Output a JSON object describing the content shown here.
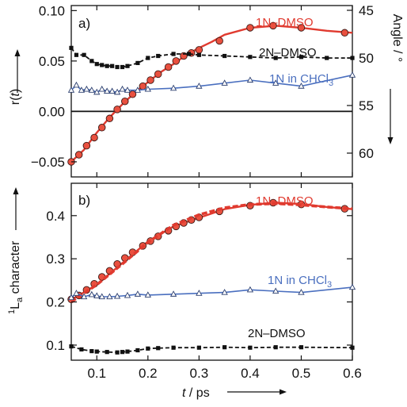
{
  "chart_data": [
    {
      "panel": "a)",
      "type": "line",
      "xlim": [
        0.05,
        0.6
      ],
      "ylim": [
        -0.065,
        0.105
      ],
      "y2lim": [
        62.5,
        44.5
      ],
      "x_ticks": [
        0.1,
        0.2,
        0.3,
        0.4,
        0.5,
        0.6
      ],
      "y_ticks": [
        -0.05,
        0.0,
        0.05,
        0.1
      ],
      "y_tick_labels": [
        "-0.05",
        "0.00",
        "0.05",
        "0.10"
      ],
      "y2_ticks": [
        45,
        50,
        55,
        60
      ],
      "y2_tick_labels": [
        "45",
        "50",
        "55",
        "60"
      ],
      "ylabel": "r(t)",
      "y2label": "Angle / °",
      "zero_line": true,
      "series": [
        {
          "name": "1N–DMSO",
          "color": "#e03a2f",
          "style": "solid",
          "marker": "circle",
          "x": [
            0.05,
            0.075,
            0.1,
            0.125,
            0.15,
            0.175,
            0.2,
            0.225,
            0.25,
            0.275,
            0.3,
            0.325,
            0.35,
            0.4,
            0.45,
            0.5,
            0.55,
            0.6
          ],
          "y": [
            -0.05,
            -0.038,
            -0.021,
            -0.006,
            0.007,
            0.019,
            0.029,
            0.039,
            0.047,
            0.056,
            0.063,
            0.069,
            0.076,
            0.083,
            0.085,
            0.083,
            0.08,
            0.078
          ],
          "marker_x": [
            0.05,
            0.065,
            0.08,
            0.095,
            0.11,
            0.125,
            0.14,
            0.155,
            0.17,
            0.19,
            0.205,
            0.22,
            0.24,
            0.255,
            0.27,
            0.285,
            0.3,
            0.34,
            0.4,
            0.445,
            0.5,
            0.585
          ],
          "marker_y": [
            -0.05,
            -0.043,
            -0.034,
            -0.026,
            -0.016,
            -0.007,
            0.002,
            0.01,
            0.017,
            0.025,
            0.031,
            0.037,
            0.044,
            0.05,
            0.055,
            0.058,
            0.061,
            0.07,
            0.083,
            0.085,
            0.083,
            0.078
          ]
        },
        {
          "name": "2N–DMSO",
          "color": "#111111",
          "style": "dashed",
          "marker": "square",
          "x": [
            0.05,
            0.06,
            0.075,
            0.09,
            0.1,
            0.11,
            0.12,
            0.13,
            0.14,
            0.15,
            0.16,
            0.18,
            0.2,
            0.22,
            0.25,
            0.28,
            0.3,
            0.35,
            0.4,
            0.45,
            0.5,
            0.55,
            0.6
          ],
          "y": [
            0.063,
            0.056,
            0.056,
            0.05,
            0.047,
            0.046,
            0.045,
            0.045,
            0.044,
            0.044,
            0.045,
            0.048,
            0.053,
            0.055,
            0.057,
            0.057,
            0.056,
            0.055,
            0.054,
            0.053,
            0.054,
            0.053,
            0.053
          ]
        },
        {
          "name": "1N in CHCl3",
          "color": "#4a6fbf",
          "style": "solid",
          "marker": "triangle",
          "x": [
            0.05,
            0.06,
            0.07,
            0.08,
            0.09,
            0.1,
            0.11,
            0.12,
            0.13,
            0.14,
            0.15,
            0.16,
            0.18,
            0.2,
            0.25,
            0.3,
            0.35,
            0.4,
            0.45,
            0.5,
            0.6
          ],
          "y": [
            0.021,
            0.026,
            0.021,
            0.022,
            0.021,
            0.019,
            0.022,
            0.02,
            0.02,
            0.019,
            0.022,
            0.021,
            0.021,
            0.022,
            0.023,
            0.025,
            0.028,
            0.031,
            0.028,
            0.025,
            0.036
          ]
        }
      ]
    },
    {
      "panel": "b)",
      "type": "line",
      "xlim": [
        0.05,
        0.6
      ],
      "ylim": [
        0.065,
        0.475
      ],
      "x_ticks": [
        0.1,
        0.2,
        0.3,
        0.4,
        0.5,
        0.6
      ],
      "x_tick_labels": [
        "0.1",
        "0.2",
        "0.3",
        "0.4",
        "0.5",
        "0.6"
      ],
      "y_ticks": [
        0.1,
        0.2,
        0.3,
        0.4
      ],
      "y_tick_labels": [
        "0.1",
        "0.2",
        "0.3",
        "0.4"
      ],
      "xlabel": "t / ps",
      "ylabel": "La character",
      "series": [
        {
          "name": "1N–DMSO",
          "color": "#e03a2f",
          "style": "solid",
          "marker": "circle",
          "x": [
            0.05,
            0.1,
            0.15,
            0.2,
            0.25,
            0.3,
            0.35,
            0.4,
            0.45,
            0.5,
            0.55,
            0.6
          ],
          "y": [
            0.205,
            0.24,
            0.29,
            0.34,
            0.375,
            0.395,
            0.415,
            0.425,
            0.43,
            0.427,
            0.42,
            0.415
          ],
          "marker_x": [
            0.05,
            0.065,
            0.08,
            0.095,
            0.11,
            0.125,
            0.14,
            0.155,
            0.17,
            0.19,
            0.205,
            0.22,
            0.24,
            0.255,
            0.27,
            0.285,
            0.3,
            0.34,
            0.4,
            0.445,
            0.5,
            0.585
          ],
          "marker_y": [
            0.206,
            0.215,
            0.228,
            0.242,
            0.258,
            0.272,
            0.288,
            0.302,
            0.315,
            0.33,
            0.341,
            0.352,
            0.365,
            0.375,
            0.383,
            0.39,
            0.396,
            0.41,
            0.423,
            0.43,
            0.426,
            0.416
          ]
        },
        {
          "name": "1N–DMSO fit",
          "color": "#e03a2f",
          "style": "bold-dashed",
          "marker": "none",
          "x": [
            0.05,
            0.1,
            0.15,
            0.2,
            0.25,
            0.3,
            0.35,
            0.4,
            0.45,
            0.5,
            0.55,
            0.6
          ],
          "y": [
            0.2,
            0.24,
            0.288,
            0.338,
            0.378,
            0.402,
            0.418,
            0.426,
            0.428,
            0.425,
            0.42,
            0.416
          ]
        },
        {
          "name": "1N in CHCl3",
          "color": "#4a6fbf",
          "style": "solid",
          "marker": "triangle",
          "x": [
            0.05,
            0.06,
            0.075,
            0.09,
            0.1,
            0.11,
            0.125,
            0.14,
            0.16,
            0.18,
            0.2,
            0.25,
            0.3,
            0.35,
            0.4,
            0.45,
            0.5,
            0.6
          ],
          "y": [
            0.21,
            0.22,
            0.212,
            0.217,
            0.214,
            0.212,
            0.212,
            0.213,
            0.215,
            0.218,
            0.216,
            0.218,
            0.22,
            0.222,
            0.228,
            0.225,
            0.222,
            0.234
          ]
        },
        {
          "name": "2N–DMSO",
          "color": "#111111",
          "style": "dashed",
          "marker": "square",
          "x": [
            0.05,
            0.07,
            0.09,
            0.1,
            0.12,
            0.14,
            0.15,
            0.16,
            0.18,
            0.2,
            0.22,
            0.25,
            0.3,
            0.35,
            0.4,
            0.45,
            0.5,
            0.6
          ],
          "y": [
            0.097,
            0.09,
            0.086,
            0.085,
            0.084,
            0.083,
            0.084,
            0.085,
            0.088,
            0.092,
            0.093,
            0.094,
            0.094,
            0.095,
            0.094,
            0.095,
            0.095,
            0.094
          ]
        }
      ]
    }
  ],
  "labels": {
    "panel_a": "a)",
    "panel_b": "b)",
    "a_1n_dmso": "1N–DMSO",
    "a_2n_dmso": "2N–DMSO",
    "a_1n_chcl3": "1N in CHCl",
    "b_1n_dmso": "1N–DMSO",
    "b_1n_chcl3": "1N in CHCl",
    "b_2n_dmso": "2N–DMSO",
    "chcl3_sub": "3",
    "xlabel_t": "t",
    "xlabel_unit": " / ps",
    "ylabel_a_r": "r(",
    "ylabel_a_t": "t",
    "ylabel_a_close": ")",
    "ylabel_b_sup": "1",
    "ylabel_b_L": "L",
    "ylabel_b_sub": "a",
    "ylabel_b_rest": " character",
    "y2label": "Angle / °"
  }
}
